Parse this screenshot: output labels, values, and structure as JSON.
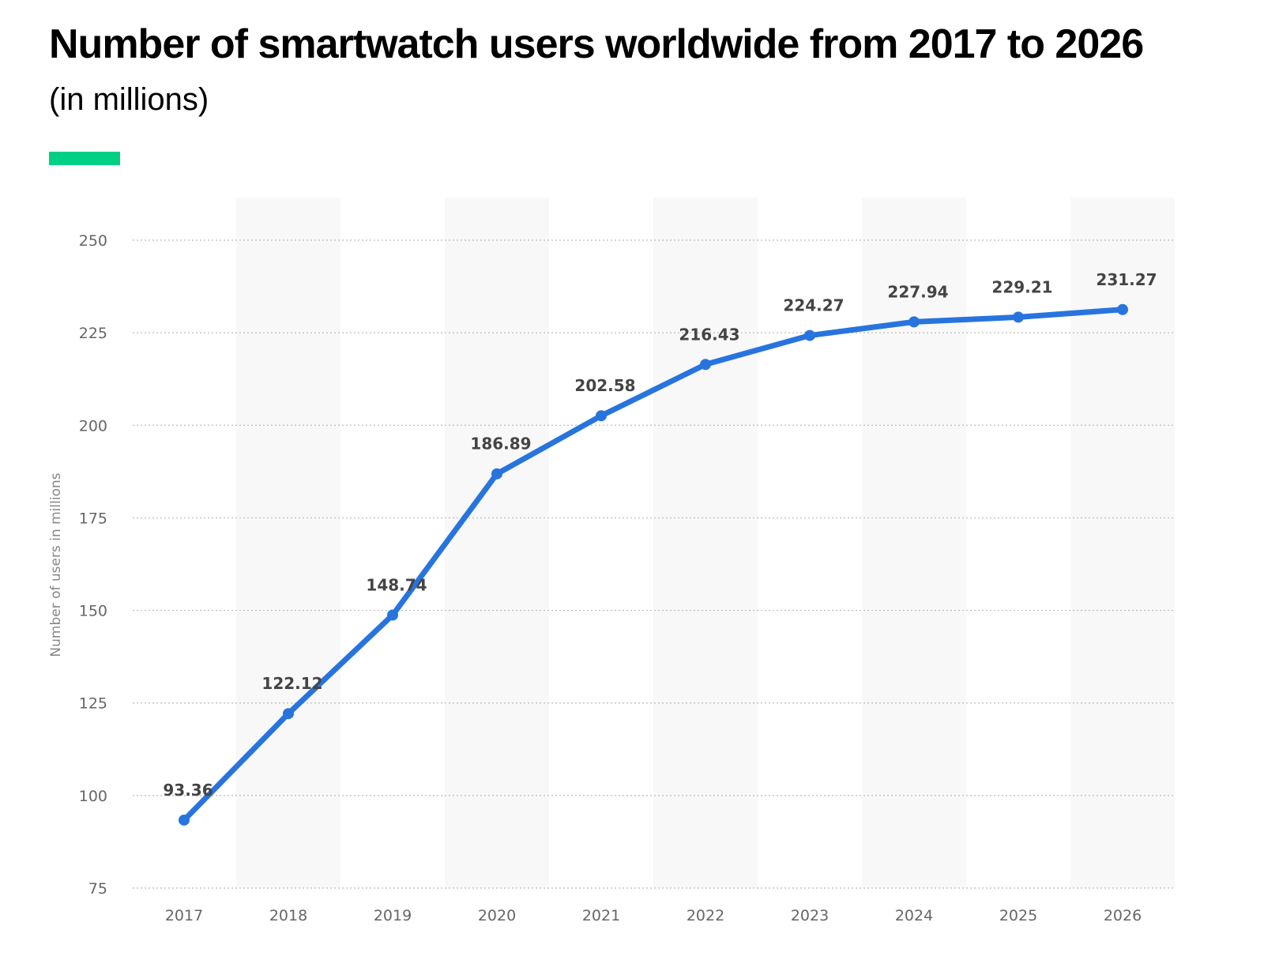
{
  "chart_data": {
    "type": "line",
    "title": "Number of smartwatch users worldwide from 2017 to 2026",
    "subtitle": "(in millions)",
    "xlabel": "",
    "ylabel": "Number of users in millions",
    "categories": [
      "2017",
      "2018",
      "2019",
      "2020",
      "2021",
      "2022",
      "2023",
      "2024",
      "2025",
      "2026"
    ],
    "values": [
      93.36,
      122.12,
      148.74,
      186.89,
      202.58,
      216.43,
      224.27,
      227.94,
      229.21,
      231.27
    ],
    "data_labels": [
      "93.36",
      "122.12",
      "148.74",
      "186.89",
      "202.58",
      "216.43",
      "224.27",
      "227.94",
      "229.21",
      "231.27"
    ],
    "ylim": [
      75,
      250
    ],
    "yticks": [
      "75",
      "100",
      "125",
      "150",
      "175",
      "200",
      "225",
      "250"
    ],
    "grid": true,
    "legend": "none",
    "colors": {
      "line": "#2874de",
      "accent": "#00d084",
      "band": "#f8f8f8"
    }
  }
}
